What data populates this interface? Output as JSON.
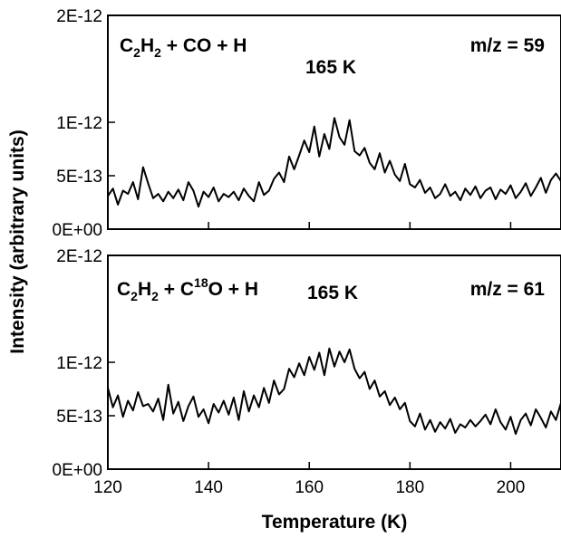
{
  "chart_data": {
    "type": "line",
    "xlabel": "Temperature (K)",
    "ylabel": "Intensity (arbitrary units)",
    "xlim": [
      120,
      210
    ],
    "x_ticks": [
      "120",
      "140",
      "160",
      "180",
      "200"
    ],
    "x_tick_values": [
      120,
      140,
      160,
      180,
      200
    ],
    "line_color": "#000000",
    "panels": [
      {
        "reaction": {
          "a": "C",
          "a_sub": "2",
          "b": "H",
          "b_sub": "2",
          "rest": " + CO + H"
        },
        "mz_label": "m/z = 59",
        "peak_label": "165 K",
        "ylim": [
          0,
          2e-12
        ],
        "y_ticks": [
          "0E+00",
          "5E-13",
          "1E-12",
          "2E-12"
        ],
        "y_tick_values": [
          0,
          5e-13,
          1e-12,
          2e-12
        ],
        "series": [
          {
            "x": [
              120,
              121,
              122,
              123,
              124,
              125,
              126,
              127,
              128,
              129,
              130,
              131,
              132,
              133,
              134,
              135,
              136,
              137,
              138,
              139,
              140,
              141,
              142,
              143,
              144,
              145,
              146,
              147,
              148,
              149,
              150,
              151,
              152,
              153,
              154,
              155,
              156,
              157,
              158,
              159,
              160,
              161,
              162,
              163,
              164,
              165,
              166,
              167,
              168,
              169,
              170,
              171,
              172,
              173,
              174,
              175,
              176,
              177,
              178,
              179,
              180,
              181,
              182,
              183,
              184,
              185,
              186,
              187,
              188,
              189,
              190,
              191,
              192,
              193,
              194,
              195,
              196,
              197,
              198,
              199,
              200,
              201,
              202,
              203,
              204,
              205,
              206,
              207,
              208,
              209,
              210
            ],
            "values": [
              3.1e-13,
              3.8e-13,
              2.3e-13,
              3.6e-13,
              3.3e-13,
              4.4e-13,
              2.8e-13,
              5.8e-13,
              4.3e-13,
              2.9e-13,
              3.3e-13,
              2.6e-13,
              3.5e-13,
              2.9e-13,
              3.7e-13,
              2.7e-13,
              4.4e-13,
              3.6e-13,
              2.1e-13,
              3.5e-13,
              3e-13,
              3.9e-13,
              2.6e-13,
              3.3e-13,
              3e-13,
              3.5e-13,
              2.7e-13,
              3.8e-13,
              3.1e-13,
              2.6e-13,
              4.4e-13,
              3.2e-13,
              3.6e-13,
              4.7e-13,
              5.3e-13,
              4.4e-13,
              6.8e-13,
              5.6e-13,
              6.9e-13,
              8.3e-13,
              7.2e-13,
              9.6e-13,
              6.8e-13,
              8.9e-13,
              7.5e-13,
              1.04e-12,
              8.6e-13,
              7.9e-13,
              1.02e-12,
              7.3e-13,
              6.9e-13,
              7.6e-13,
              6.2e-13,
              5.6e-13,
              7.1e-13,
              5.3e-13,
              6.4e-13,
              5.1e-13,
              4.5e-13,
              6.1e-13,
              4.2e-13,
              3.9e-13,
              4.6e-13,
              3.4e-13,
              3.9e-13,
              2.9e-13,
              3.3e-13,
              4.2e-13,
              3.1e-13,
              3.5e-13,
              2.7e-13,
              3.8e-13,
              3.2e-13,
              4e-13,
              2.9e-13,
              3.6e-13,
              3.9e-13,
              2.8e-13,
              3.7e-13,
              3.3e-13,
              4.1e-13,
              2.9e-13,
              3.5e-13,
              4.3e-13,
              3.1e-13,
              3.9e-13,
              4.8e-13,
              3.4e-13,
              4.6e-13,
              5.2e-13,
              4.5e-13
            ]
          }
        ]
      },
      {
        "reaction": {
          "a": "C",
          "a_sub": "2",
          "b": "H",
          "b_sub": "2",
          "c": " + C",
          "c_sup": "18",
          "rest": "O + H"
        },
        "mz_label": "m/z = 61",
        "peak_label": "165 K",
        "ylim": [
          0,
          2e-12
        ],
        "y_ticks": [
          "0E+00",
          "5E-13",
          "1E-12",
          "2E-12"
        ],
        "y_tick_values": [
          0,
          5e-13,
          1e-12,
          2e-12
        ],
        "series": [
          {
            "x": [
              120,
              121,
              122,
              123,
              124,
              125,
              126,
              127,
              128,
              129,
              130,
              131,
              132,
              133,
              134,
              135,
              136,
              137,
              138,
              139,
              140,
              141,
              142,
              143,
              144,
              145,
              146,
              147,
              148,
              149,
              150,
              151,
              152,
              153,
              154,
              155,
              156,
              157,
              158,
              159,
              160,
              161,
              162,
              163,
              164,
              165,
              166,
              167,
              168,
              169,
              170,
              171,
              172,
              173,
              174,
              175,
              176,
              177,
              178,
              179,
              180,
              181,
              182,
              183,
              184,
              185,
              186,
              187,
              188,
              189,
              190,
              191,
              192,
              193,
              194,
              195,
              196,
              197,
              198,
              199,
              200,
              201,
              202,
              203,
              204,
              205,
              206,
              207,
              208,
              209,
              210
            ],
            "values": [
              7.6e-13,
              5.8e-13,
              6.9e-13,
              4.9e-13,
              6.4e-13,
              5.5e-13,
              7.2e-13,
              5.9e-13,
              6.1e-13,
              5.4e-13,
              6.6e-13,
              4.6e-13,
              7.9e-13,
              5.2e-13,
              6.3e-13,
              4.5e-13,
              5.9e-13,
              6.8e-13,
              4.9e-13,
              5.6e-13,
              4.3e-13,
              6.1e-13,
              5.3e-13,
              6.4e-13,
              5.1e-13,
              6.7e-13,
              4.6e-13,
              7.3e-13,
              5.4e-13,
              6.9e-13,
              5.8e-13,
              7.6e-13,
              6.2e-13,
              8.3e-13,
              7e-13,
              7.5e-13,
              9.4e-13,
              8.6e-13,
              9.9e-13,
              8.8e-13,
              1.05e-12,
              9.3e-13,
              1.09e-12,
              8.8e-13,
              1.13e-12,
              9.6e-13,
              1.1e-12,
              1e-12,
              1.12e-12,
              9.4e-13,
              8.5e-13,
              9.1e-13,
              7.5e-13,
              8.3e-13,
              6.8e-13,
              7.3e-13,
              6e-13,
              6.7e-13,
              5.6e-13,
              6.2e-13,
              4.5e-13,
              4e-13,
              5.2e-13,
              3.7e-13,
              4.6e-13,
              3.5e-13,
              4.4e-13,
              3.8e-13,
              4.7e-13,
              3.4e-13,
              4.2e-13,
              3.9e-13,
              4.6e-13,
              4e-13,
              4.5e-13,
              5.1e-13,
              4.2e-13,
              5.6e-13,
              4.4e-13,
              3.7e-13,
              4.9e-13,
              3.3e-13,
              4.6e-13,
              5.2e-13,
              4.1e-13,
              5.6e-13,
              4.8e-13,
              3.9e-13,
              5.4e-13,
              4.6e-13,
              6.2e-13
            ]
          }
        ]
      }
    ]
  }
}
